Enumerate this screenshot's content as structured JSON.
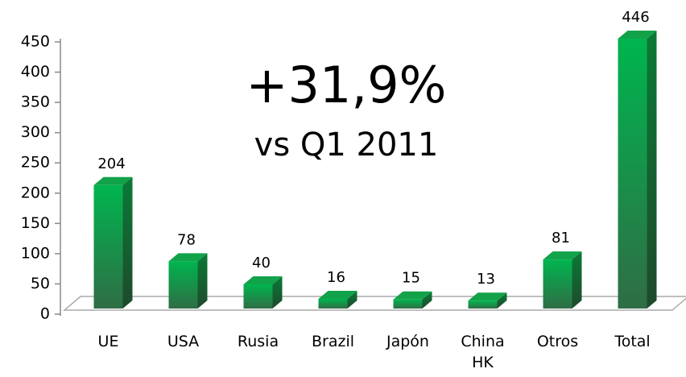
{
  "chart_data": {
    "type": "bar3d",
    "annotations": [
      "+31,9%",
      "vs Q1 2011"
    ],
    "categories": [
      "UE",
      "USA",
      "Rusia",
      "Brazil",
      "Japón",
      "China HK",
      "Otros",
      "Total"
    ],
    "values": [
      204,
      78,
      40,
      16,
      15,
      13,
      81,
      446
    ],
    "color": "#00b050",
    "ylim": [
      0,
      450
    ],
    "yticks": [
      0,
      50,
      100,
      150,
      200,
      250,
      300,
      350,
      400,
      450
    ]
  }
}
